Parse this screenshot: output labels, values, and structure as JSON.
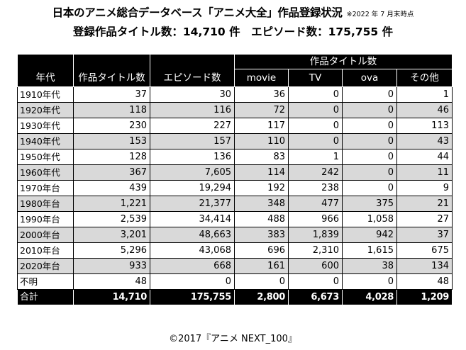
{
  "header": {
    "title": "日本のアニメ総合データベース「アニメ大全」作品登録状況",
    "note": "※2022 年 7 月末時点",
    "subtitle": "登録作品タイトル数：14,710 件　エピソード数：175,755 件"
  },
  "table": {
    "group_header": "作品タイトル数",
    "columns": [
      "年代",
      "作品タイトル数",
      "エピソード数",
      "movie",
      "TV",
      "ova",
      "その他"
    ],
    "rows": [
      [
        "1910年代",
        "37",
        "30",
        "36",
        "0",
        "0",
        "1"
      ],
      [
        "1920年代",
        "118",
        "116",
        "72",
        "0",
        "0",
        "46"
      ],
      [
        "1930年代",
        "230",
        "227",
        "117",
        "0",
        "0",
        "113"
      ],
      [
        "1940年代",
        "153",
        "157",
        "110",
        "0",
        "0",
        "43"
      ],
      [
        "1950年代",
        "128",
        "136",
        "83",
        "1",
        "0",
        "44"
      ],
      [
        "1960年代",
        "367",
        "7,605",
        "114",
        "242",
        "0",
        "11"
      ],
      [
        "1970年台",
        "439",
        "19,294",
        "192",
        "238",
        "0",
        "9"
      ],
      [
        "1980年台",
        "1,221",
        "21,377",
        "348",
        "477",
        "375",
        "21"
      ],
      [
        "1990年台",
        "2,539",
        "34,414",
        "488",
        "966",
        "1,058",
        "27"
      ],
      [
        "2000年台",
        "3,201",
        "48,663",
        "383",
        "1,839",
        "942",
        "37"
      ],
      [
        "2010年台",
        "5,296",
        "43,068",
        "696",
        "2,310",
        "1,615",
        "675"
      ],
      [
        "2020年台",
        "933",
        "668",
        "161",
        "600",
        "38",
        "134"
      ],
      [
        "不明",
        "48",
        "0",
        "0",
        "0",
        "0",
        "48"
      ]
    ],
    "total": [
      "合計",
      "14,710",
      "175,755",
      "2,800",
      "6,673",
      "4,028",
      "1,209"
    ]
  },
  "footer": {
    "copyright": "©2017『アニメ NEXT_100』"
  },
  "colors": {
    "header_bg": "#000000",
    "shade_row": "#d9d9d9"
  }
}
